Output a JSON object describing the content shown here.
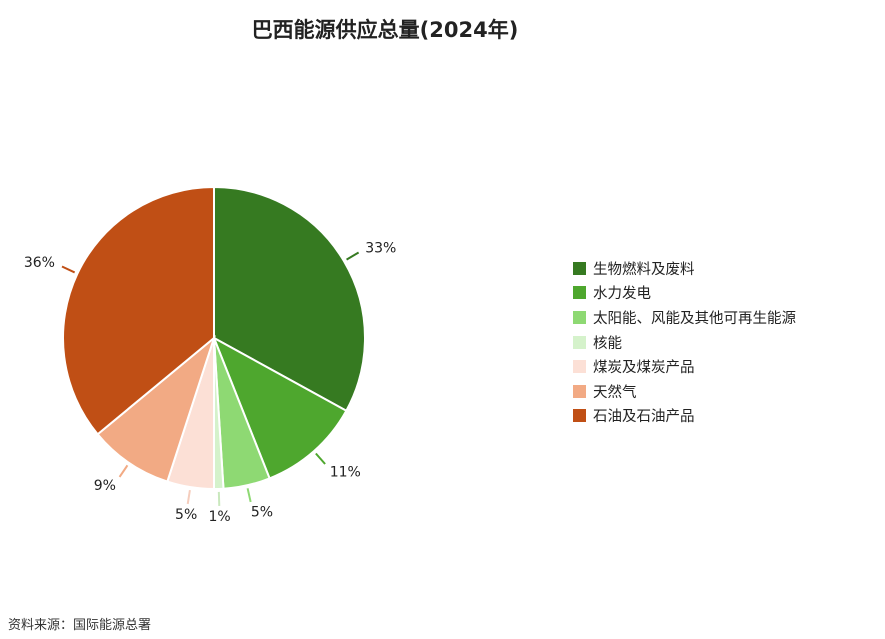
{
  "title": "巴西能源供应总量(2024年)",
  "source": "资料来源：国际能源总署",
  "chart_data": {
    "type": "pie",
    "title": "巴西能源供应总量(2024年)",
    "legend_position": "right",
    "start": "top",
    "direction": "clockwise",
    "slices": [
      {
        "name": "生物燃料及废料",
        "value": 33,
        "label": "33%",
        "color": "#367a21"
      },
      {
        "name": "水力发电",
        "value": 11,
        "label": "11%",
        "color": "#4ea72e"
      },
      {
        "name": "太阳能、风能及其他可再生能源",
        "value": 5,
        "label": "5%",
        "color": "#8ed973"
      },
      {
        "name": "核能",
        "value": 1,
        "label": "1%",
        "color": "#d5f2cb"
      },
      {
        "name": "煤炭及煤炭产品",
        "value": 5,
        "label": "5%",
        "color": "#fce0d6"
      },
      {
        "name": "天然气",
        "value": 9,
        "label": "9%",
        "color": "#f2aa84"
      },
      {
        "name": "石油及石油产品",
        "value": 36,
        "label": "36%",
        "color": "#c04f15"
      }
    ]
  }
}
